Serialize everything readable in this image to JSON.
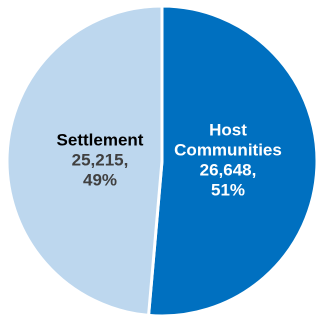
{
  "chart_data": {
    "type": "pie",
    "slices": [
      {
        "name": "Host Communities",
        "value": 26648,
        "percent": 51,
        "value_label": "26,648,",
        "percent_label": "51%",
        "name_lines": [
          "Host",
          "Communities"
        ],
        "color": "#0070c0",
        "text_color": "#ffffff"
      },
      {
        "name": "Settlement",
        "value": 25215,
        "percent": 49,
        "value_label": "25,215,",
        "percent_label": "49%",
        "name_lines": [
          "Settlement"
        ],
        "color": "#bdd7ee",
        "name_color": "#000000",
        "text_color": "#404040"
      }
    ]
  }
}
